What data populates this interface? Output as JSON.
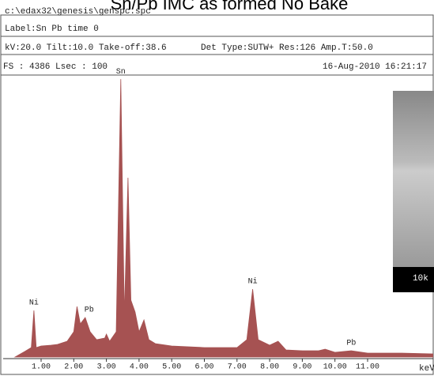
{
  "chart_data": {
    "type": "area",
    "title": "Sn/Pb IMC as formed No Bake",
    "file": "c:\\edax32\\genesis\\genspc.spc",
    "label": "Label:Sn Pb time 0",
    "settings": "kV:20.0 Tilt:10.0 Take-off:38.6",
    "detector": "Det Type:SUTW+ Res:126 Amp.T:50.0",
    "full_scale": "FS : 4386  Lsec : 100",
    "date": "16-Aug-2010 16:21:17",
    "x_label": "keV",
    "inset_label": "10k",
    "color": "#a65252",
    "x": [
      0.2,
      0.5,
      0.7,
      0.78,
      0.85,
      1.0,
      1.3,
      1.5,
      1.8,
      2.0,
      2.1,
      2.2,
      2.35,
      2.5,
      2.7,
      2.95,
      3.0,
      3.1,
      3.3,
      3.44,
      3.55,
      3.66,
      3.75,
      3.88,
      4.0,
      4.15,
      4.3,
      4.5,
      5.0,
      6.0,
      7.0,
      7.3,
      7.48,
      7.65,
      8.0,
      8.26,
      8.5,
      9.0,
      9.5,
      9.7,
      10.0,
      10.5,
      11.0,
      12.0,
      13.0
    ],
    "values": [
      0,
      87,
      149,
      731,
      149,
      173,
      186,
      198,
      248,
      397,
      793,
      520,
      620,
      397,
      273,
      297,
      359,
      248,
      397,
      4361,
      644,
      2813,
      892,
      706,
      397,
      582,
      273,
      211,
      173,
      149,
      149,
      273,
      1066,
      273,
      186,
      248,
      111,
      99,
      99,
      124,
      74,
      99,
      62,
      62,
      50
    ],
    "xlim": [
      0,
      13
    ],
    "ylim": [
      0,
      4400
    ],
    "xticks": [
      {
        "value": 1,
        "label": "1.00"
      },
      {
        "value": 2,
        "label": "2.00"
      },
      {
        "value": 3,
        "label": "3.00"
      },
      {
        "value": 4,
        "label": "4.00"
      },
      {
        "value": 5,
        "label": "5.00"
      },
      {
        "value": 6,
        "label": "6.00"
      },
      {
        "value": 7,
        "label": "7.00"
      },
      {
        "value": 8,
        "label": "8.00"
      },
      {
        "value": 9,
        "label": "9.00"
      },
      {
        "value": 10,
        "label": "10.00"
      },
      {
        "value": 11,
        "label": "11.00"
      }
    ],
    "annotations": [
      {
        "text": "Ni",
        "x": 0.78,
        "y": 731
      },
      {
        "text": "Pb",
        "x": 2.35,
        "y": 620
      },
      {
        "text": "Sn",
        "x": 3.44,
        "y": 4361
      },
      {
        "text": "Ni",
        "x": 7.48,
        "y": 1066
      },
      {
        "text": "Pb",
        "x": 10.5,
        "y": 99
      }
    ]
  }
}
